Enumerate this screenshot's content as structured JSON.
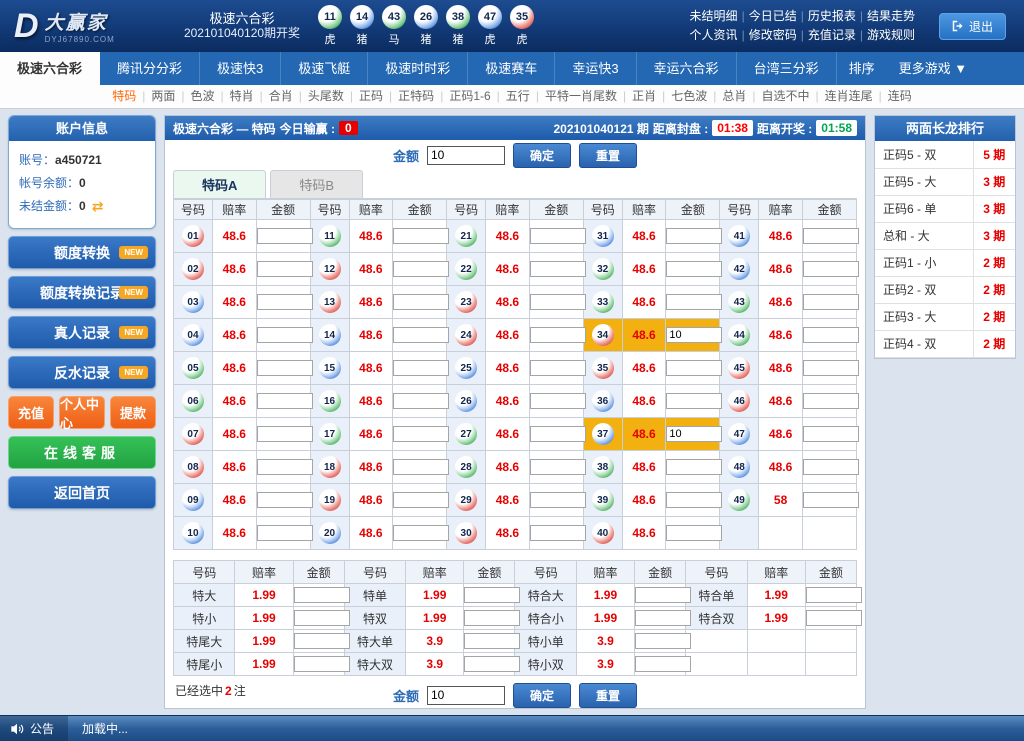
{
  "colors": {
    "ball_red": "#d8443c",
    "ball_blue": "#3b7bd4",
    "ball_green": "#3aa54a",
    "odds_red": "#e60000",
    "selection_highlight": "#f2b111",
    "close_countdown": "#ff0000",
    "open_countdown": "#00a651",
    "nav_blue": "#2468b4",
    "accent_orange": "#f5a623"
  },
  "header": {
    "logo": {
      "mark": "D",
      "brand": "大赢家",
      "domain": "DYJ67890.COM"
    },
    "lottery_name": "极速六合彩",
    "draw_info": "202101040120期开奖",
    "balls": [
      {
        "num": "11",
        "zodiac": "虎",
        "color": "green"
      },
      {
        "num": "14",
        "zodiac": "猪",
        "color": "blue"
      },
      {
        "num": "43",
        "zodiac": "马",
        "color": "green"
      },
      {
        "num": "26",
        "zodiac": "猪",
        "color": "blue"
      },
      {
        "num": "38",
        "zodiac": "猪",
        "color": "green"
      },
      {
        "num": "47",
        "zodiac": "虎",
        "color": "blue"
      },
      {
        "num": "35",
        "zodiac": "虎",
        "color": "red"
      }
    ],
    "menu_row1": [
      "未结明细",
      "今日已结",
      "历史报表",
      "结果走势"
    ],
    "menu_row2": [
      "个人资讯",
      "修改密码",
      "充值记录",
      "游戏规则"
    ],
    "logout_label": "退出"
  },
  "nav": {
    "tabs": [
      {
        "label": "极速六合彩",
        "active": true
      },
      {
        "label": "腾讯分分彩",
        "active": false
      },
      {
        "label": "极速快3",
        "active": false
      },
      {
        "label": "极速飞艇",
        "active": false
      },
      {
        "label": "极速时时彩",
        "active": false
      },
      {
        "label": "极速赛车",
        "active": false
      },
      {
        "label": "幸运快3",
        "active": false
      },
      {
        "label": "幸运六合彩",
        "active": false
      },
      {
        "label": "台湾三分彩",
        "active": false
      }
    ],
    "sort_label": "排序",
    "more_label": "更多游戏 ▼"
  },
  "subnav": {
    "items": [
      {
        "label": "特码",
        "active": true
      },
      {
        "label": "两面",
        "active": false
      },
      {
        "label": "色波",
        "active": false
      },
      {
        "label": "特肖",
        "active": false
      },
      {
        "label": "合肖",
        "active": false
      },
      {
        "label": "头尾数",
        "active": false
      },
      {
        "label": "正码",
        "active": false
      },
      {
        "label": "正特码",
        "active": false
      },
      {
        "label": "正码1-6",
        "active": false
      },
      {
        "label": "五行",
        "active": false
      },
      {
        "label": "平特一肖尾数",
        "active": false
      },
      {
        "label": "正肖",
        "active": false
      },
      {
        "label": "七色波",
        "active": false
      },
      {
        "label": "总肖",
        "active": false
      },
      {
        "label": "自选不中",
        "active": false
      },
      {
        "label": "连肖连尾",
        "active": false
      },
      {
        "label": "连码",
        "active": false
      }
    ]
  },
  "sidebar": {
    "account": {
      "title": "账户信息",
      "rows": [
        {
          "label": "账号：",
          "value": "a450721"
        },
        {
          "label": "帐号余额：",
          "value": "0"
        },
        {
          "label": "未结金额：",
          "value": "0",
          "refresh_icon": true
        }
      ]
    },
    "nav_buttons": [
      {
        "label": "额度转换",
        "badge": "NEW"
      },
      {
        "label": "额度转换记录",
        "badge": "NEW"
      },
      {
        "label": "真人记录",
        "badge": "NEW"
      },
      {
        "label": "反水记录",
        "badge": "NEW"
      }
    ],
    "action_buttons": [
      "充值",
      "个人中心",
      "提款"
    ],
    "service_button": "在线客服",
    "home_button": "返回首页"
  },
  "main": {
    "title_left": "极速六合彩 — 特码",
    "winloss_label": "今日输赢 :",
    "winloss_value": "0",
    "period": "202101040121 期",
    "close_label": "距离封盘 :",
    "close_time": "01:38",
    "open_label": "距离开奖 :",
    "open_time": "01:58",
    "amount_label": "金额",
    "amount_value": "10",
    "confirm_label": "确定",
    "reset_label": "重置",
    "tabs": [
      {
        "label": "特码A",
        "active": true
      },
      {
        "label": "特码B",
        "active": false
      }
    ],
    "col_headers": [
      "号码",
      "赔率",
      "金额"
    ],
    "number_rows": [
      [
        {
          "num": "01",
          "color": "red",
          "odds": "48.6"
        },
        {
          "num": "11",
          "color": "green",
          "odds": "48.6"
        },
        {
          "num": "21",
          "color": "green",
          "odds": "48.6"
        },
        {
          "num": "31",
          "color": "blue",
          "odds": "48.6"
        },
        {
          "num": "41",
          "color": "blue",
          "odds": "48.6"
        }
      ],
      [
        {
          "num": "02",
          "color": "red",
          "odds": "48.6"
        },
        {
          "num": "12",
          "color": "red",
          "odds": "48.6"
        },
        {
          "num": "22",
          "color": "green",
          "odds": "48.6"
        },
        {
          "num": "32",
          "color": "green",
          "odds": "48.6"
        },
        {
          "num": "42",
          "color": "blue",
          "odds": "48.6"
        }
      ],
      [
        {
          "num": "03",
          "color": "blue",
          "odds": "48.6"
        },
        {
          "num": "13",
          "color": "red",
          "odds": "48.6"
        },
        {
          "num": "23",
          "color": "red",
          "odds": "48.6"
        },
        {
          "num": "33",
          "color": "green",
          "odds": "48.6"
        },
        {
          "num": "43",
          "color": "green",
          "odds": "48.6"
        }
      ],
      [
        {
          "num": "04",
          "color": "blue",
          "odds": "48.6"
        },
        {
          "num": "14",
          "color": "blue",
          "odds": "48.6"
        },
        {
          "num": "24",
          "color": "red",
          "odds": "48.6"
        },
        {
          "num": "34",
          "color": "red",
          "odds": "48.6",
          "selected": true,
          "amount": "10"
        },
        {
          "num": "44",
          "color": "green",
          "odds": "48.6"
        }
      ],
      [
        {
          "num": "05",
          "color": "green",
          "odds": "48.6"
        },
        {
          "num": "15",
          "color": "blue",
          "odds": "48.6"
        },
        {
          "num": "25",
          "color": "blue",
          "odds": "48.6"
        },
        {
          "num": "35",
          "color": "red",
          "odds": "48.6"
        },
        {
          "num": "45",
          "color": "red",
          "odds": "48.6"
        }
      ],
      [
        {
          "num": "06",
          "color": "green",
          "odds": "48.6"
        },
        {
          "num": "16",
          "color": "green",
          "odds": "48.6"
        },
        {
          "num": "26",
          "color": "blue",
          "odds": "48.6"
        },
        {
          "num": "36",
          "color": "blue",
          "odds": "48.6"
        },
        {
          "num": "46",
          "color": "red",
          "odds": "48.6"
        }
      ],
      [
        {
          "num": "07",
          "color": "red",
          "odds": "48.6"
        },
        {
          "num": "17",
          "color": "green",
          "odds": "48.6"
        },
        {
          "num": "27",
          "color": "green",
          "odds": "48.6"
        },
        {
          "num": "37",
          "color": "blue",
          "odds": "48.6",
          "selected": true,
          "amount": "10"
        },
        {
          "num": "47",
          "color": "blue",
          "odds": "48.6"
        }
      ],
      [
        {
          "num": "08",
          "color": "red",
          "odds": "48.6"
        },
        {
          "num": "18",
          "color": "red",
          "odds": "48.6"
        },
        {
          "num": "28",
          "color": "green",
          "odds": "48.6"
        },
        {
          "num": "38",
          "color": "green",
          "odds": "48.6"
        },
        {
          "num": "48",
          "color": "blue",
          "odds": "48.6"
        }
      ],
      [
        {
          "num": "09",
          "color": "blue",
          "odds": "48.6"
        },
        {
          "num": "19",
          "color": "red",
          "odds": "48.6"
        },
        {
          "num": "29",
          "color": "red",
          "odds": "48.6"
        },
        {
          "num": "39",
          "color": "green",
          "odds": "48.6"
        },
        {
          "num": "49",
          "color": "green",
          "odds": "58"
        }
      ],
      [
        {
          "num": "10",
          "color": "blue",
          "odds": "48.6"
        },
        {
          "num": "20",
          "color": "blue",
          "odds": "48.6"
        },
        {
          "num": "30",
          "color": "red",
          "odds": "48.6"
        },
        {
          "num": "40",
          "color": "red",
          "odds": "48.6"
        },
        null
      ]
    ],
    "twoside_rows": [
      [
        {
          "label": "特大",
          "odds": "1.99"
        },
        {
          "label": "特单",
          "odds": "1.99"
        },
        {
          "label": "特合大",
          "odds": "1.99"
        },
        {
          "label": "特合单",
          "odds": "1.99"
        }
      ],
      [
        {
          "label": "特小",
          "odds": "1.99"
        },
        {
          "label": "特双",
          "odds": "1.99"
        },
        {
          "label": "特合小",
          "odds": "1.99"
        },
        {
          "label": "特合双",
          "odds": "1.99"
        }
      ],
      [
        {
          "label": "特尾大",
          "odds": "1.99"
        },
        {
          "label": "特大单",
          "odds": "3.9"
        },
        {
          "label": "特小单",
          "odds": "3.9"
        },
        null
      ],
      [
        {
          "label": "特尾小",
          "odds": "1.99"
        },
        {
          "label": "特大双",
          "odds": "3.9"
        },
        {
          "label": "特小双",
          "odds": "3.9"
        },
        null
      ]
    ],
    "selected_prefix": "已经选中",
    "selected_count": "2",
    "selected_suffix": "注"
  },
  "dragon": {
    "title": "两面长龙排行",
    "rows": [
      {
        "name": "正码5 - 双",
        "streak": "5 期"
      },
      {
        "name": "正码5 - 大",
        "streak": "3 期"
      },
      {
        "name": "正码6 - 单",
        "streak": "3 期"
      },
      {
        "name": "总和 - 大",
        "streak": "3 期"
      },
      {
        "name": "正码1 - 小",
        "streak": "2 期"
      },
      {
        "name": "正码2 - 双",
        "streak": "2 期"
      },
      {
        "name": "正码3 - 大",
        "streak": "2 期"
      },
      {
        "name": "正码4 - 双",
        "streak": "2 期"
      }
    ]
  },
  "footer": {
    "announce_label": "公告",
    "text": "加载中..."
  }
}
